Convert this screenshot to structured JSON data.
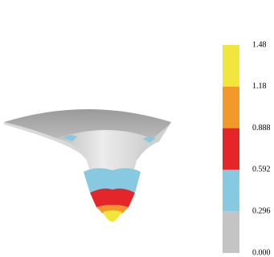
{
  "colorbar": {
    "labels": [
      "1.48",
      "1.18",
      "0.888",
      "0.592",
      "0.296",
      "0.000"
    ],
    "bands": [
      "#f0e63c",
      "#f4982c",
      "#e4262a",
      "#88c9e2",
      "#c4c4c4"
    ]
  }
}
